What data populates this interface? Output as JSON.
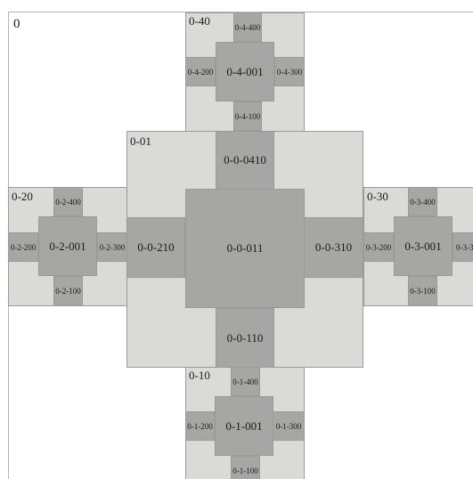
{
  "colors": {
    "background": "#ffffff",
    "level_1": "#dadad7",
    "level_2": "#a6a6a4",
    "border": "#9a9a9a"
  },
  "root": {
    "label": "0"
  },
  "center_group": {
    "label": "0-01",
    "core": "0-0-011",
    "north": "0-0-0410",
    "west": "0-0-210",
    "east": "0-0-310",
    "south": "0-0-110"
  },
  "groups": {
    "north": {
      "label": "0-40",
      "core": "0-4-001",
      "top": "0-4-400",
      "left": "0-4-200",
      "right": "0-4-300",
      "bottom": "0-4-100"
    },
    "west": {
      "label": "0-20",
      "core": "0-2-001",
      "top": "0-2-400",
      "left": "0-2-200",
      "right": "0-2-300",
      "bottom": "0-2-100"
    },
    "east": {
      "label": "0-30",
      "core": "0-3-001",
      "top": "0-3-400",
      "left": "0-3-200",
      "right": "0-3-3",
      "bottom": "0-3-100"
    },
    "south": {
      "label": "0-10",
      "core": "0-1-001",
      "top": "0-1-400",
      "left": "0-1-200",
      "right": "0-1-300",
      "bottom": "0-1-100"
    }
  }
}
